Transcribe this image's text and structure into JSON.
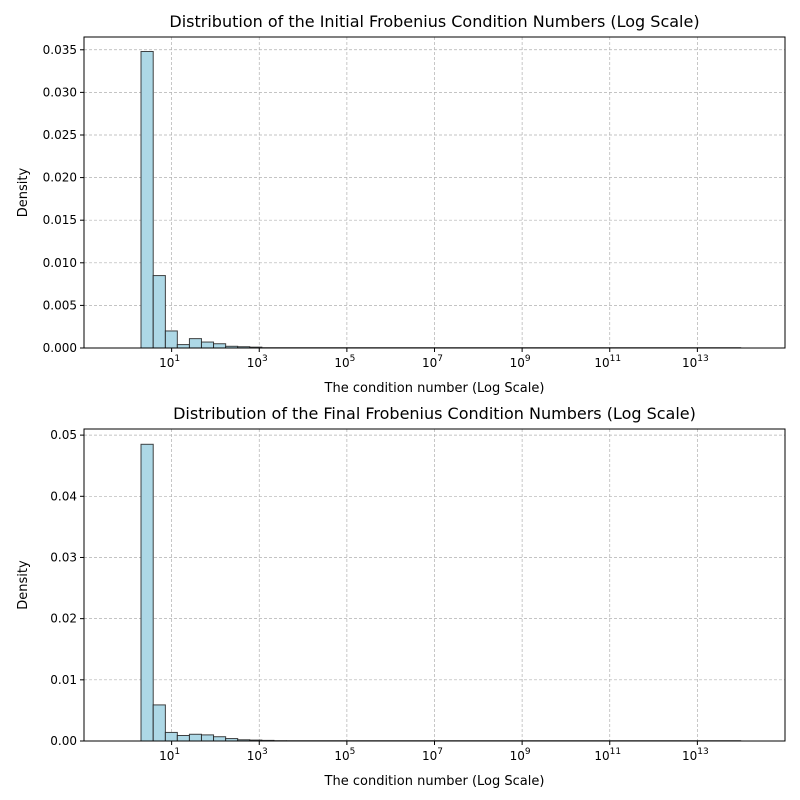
{
  "chart_data": [
    {
      "type": "bar",
      "title": "Distribution of the Initial Frobenius Condition Numbers (Log Scale)",
      "xlabel": "The condition number (Log Scale)",
      "ylabel": "Density",
      "x_scale": "log",
      "xlim": [
        0.1,
        1000000000000000.0
      ],
      "ylim": [
        0,
        0.0365
      ],
      "x_ticks": [
        {
          "base": "10",
          "exp": "1"
        },
        {
          "base": "10",
          "exp": "3"
        },
        {
          "base": "10",
          "exp": "5"
        },
        {
          "base": "10",
          "exp": "7"
        },
        {
          "base": "10",
          "exp": "9"
        },
        {
          "base": "10",
          "exp": "11"
        },
        {
          "base": "10",
          "exp": "13"
        }
      ],
      "y_ticks": [
        "0.000",
        "0.005",
        "0.010",
        "0.015",
        "0.020",
        "0.025",
        "0.030",
        "0.035"
      ],
      "grid": true,
      "bin_edges": [
        2.0,
        3.8,
        7.2,
        13.5,
        25.5,
        48.0,
        90.5,
        171.0,
        322.0,
        607.0,
        1145.0
      ],
      "values": [
        0.0348,
        0.0085,
        0.002,
        0.0004,
        0.0011,
        0.0007,
        0.0005,
        0.0002,
        0.00015,
        0.0001
      ],
      "bar_color": "#add8e6",
      "edge_color": "#222222"
    },
    {
      "type": "bar",
      "title": "Distribution of the Final Frobenius Condition Numbers (Log Scale)",
      "xlabel": "The condition number (Log Scale)",
      "ylabel": "Density",
      "x_scale": "log",
      "xlim": [
        0.1,
        1000000000000000.0
      ],
      "ylim": [
        0,
        0.051
      ],
      "x_ticks": [
        {
          "base": "10",
          "exp": "1"
        },
        {
          "base": "10",
          "exp": "3"
        },
        {
          "base": "10",
          "exp": "5"
        },
        {
          "base": "10",
          "exp": "7"
        },
        {
          "base": "10",
          "exp": "9"
        },
        {
          "base": "10",
          "exp": "11"
        },
        {
          "base": "10",
          "exp": "13"
        }
      ],
      "y_ticks": [
        "0.00",
        "0.01",
        "0.02",
        "0.03",
        "0.04",
        "0.05"
      ],
      "grid": true,
      "bin_edges": [
        2.0,
        3.8,
        7.2,
        13.5,
        25.5,
        48.0,
        90.5,
        171.0,
        322.0,
        607.0,
        1145.0,
        2160.0,
        4080.0
      ],
      "values": [
        0.0485,
        0.0059,
        0.0014,
        0.0009,
        0.0011,
        0.001,
        0.0007,
        0.0004,
        0.0002,
        0.00015,
        0.0001,
        5e-05
      ],
      "bar_color": "#add8e6",
      "edge_color": "#222222"
    }
  ]
}
